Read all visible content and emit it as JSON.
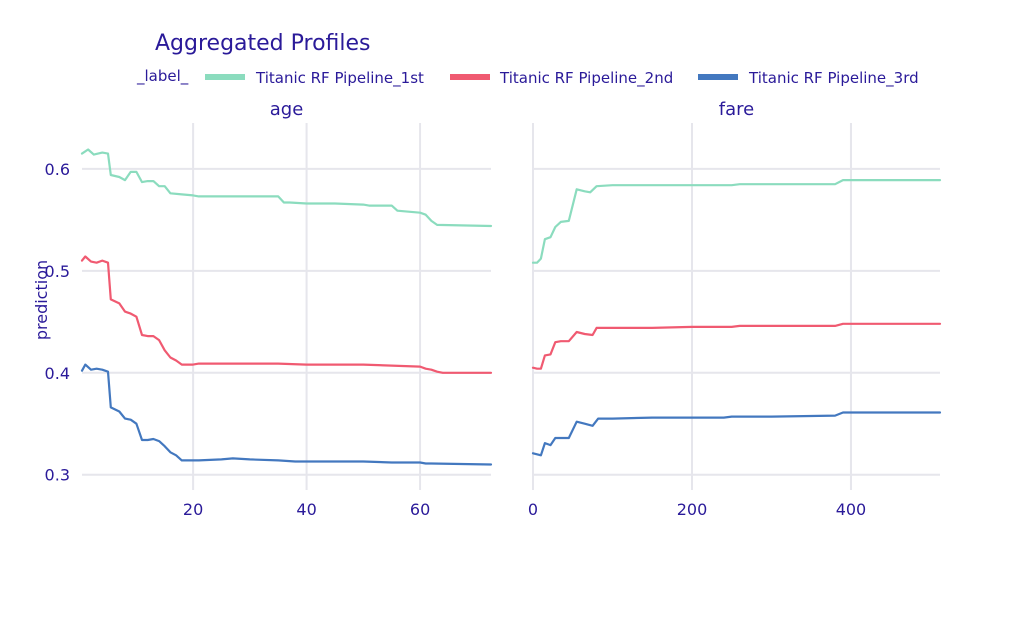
{
  "chart_data": {
    "type": "line",
    "title": "Aggregated Profiles",
    "legend": {
      "title": "_label_",
      "placement": "top",
      "entries": [
        "Titanic RF Pipeline_1st",
        "Titanic RF Pipeline_2nd",
        "Titanic RF Pipeline_3rd"
      ]
    },
    "ylabel": "prediction",
    "ylim": [
      0.285,
      0.645
    ],
    "yticks": [
      0.3,
      0.4,
      0.5,
      0.6
    ],
    "ytick_labels": [
      "0.3",
      "0.4",
      "0.5",
      "0.6"
    ],
    "grid": true,
    "colors": {
      "Titanic RF Pipeline_1st": "#8bdcbe",
      "Titanic RF Pipeline_2nd": "#f05a71",
      "Titanic RF Pipeline_3rd": "#4378bf"
    },
    "panels": [
      {
        "subtitle": "age",
        "xlim": [
          0.42,
          72.5
        ],
        "xticks": [
          20,
          40,
          60
        ],
        "xtick_labels": [
          "20",
          "40",
          "60"
        ],
        "series": [
          {
            "name": "Titanic RF Pipeline_1st",
            "x": [
              0.42,
              1.5,
              2.5,
              4,
              5,
              5.5,
              7,
              8,
              9,
              10,
              11,
              12,
              13,
              14,
              15,
              16,
              18,
              20,
              21,
              25,
              30,
              35,
              36,
              37,
              40,
              45,
              50,
              51,
              55,
              56,
              58,
              60,
              61,
              62,
              63,
              72.5
            ],
            "y": [
              0.615,
              0.619,
              0.614,
              0.616,
              0.615,
              0.594,
              0.592,
              0.589,
              0.597,
              0.597,
              0.587,
              0.588,
              0.588,
              0.583,
              0.583,
              0.576,
              0.575,
              0.574,
              0.573,
              0.573,
              0.573,
              0.573,
              0.567,
              0.567,
              0.566,
              0.566,
              0.565,
              0.564,
              0.564,
              0.559,
              0.558,
              0.557,
              0.555,
              0.549,
              0.545,
              0.544
            ]
          },
          {
            "name": "Titanic RF Pipeline_2nd",
            "x": [
              0.42,
              1,
              2,
              3,
              4,
              5,
              5.5,
              7,
              8,
              9,
              10,
              11,
              12,
              13,
              14,
              15,
              16,
              17,
              18,
              20,
              21,
              25,
              30,
              35,
              40,
              50,
              55,
              60,
              61,
              62,
              63,
              64,
              72.5
            ],
            "y": [
              0.51,
              0.514,
              0.509,
              0.508,
              0.51,
              0.508,
              0.472,
              0.468,
              0.46,
              0.458,
              0.455,
              0.437,
              0.436,
              0.436,
              0.432,
              0.422,
              0.415,
              0.412,
              0.408,
              0.408,
              0.409,
              0.409,
              0.409,
              0.409,
              0.408,
              0.408,
              0.407,
              0.406,
              0.404,
              0.403,
              0.401,
              0.4,
              0.4
            ]
          },
          {
            "name": "Titanic RF Pipeline_3rd",
            "x": [
              0.42,
              1,
              2,
              3,
              4,
              5,
              5.5,
              7,
              8,
              9,
              10,
              11,
              12,
              13,
              14,
              15,
              16,
              17,
              18,
              20,
              21,
              25,
              27,
              30,
              35,
              38,
              40,
              45,
              46,
              50,
              55,
              60,
              61,
              62,
              72.5
            ],
            "y": [
              0.402,
              0.408,
              0.403,
              0.404,
              0.403,
              0.401,
              0.366,
              0.362,
              0.355,
              0.354,
              0.35,
              0.334,
              0.334,
              0.335,
              0.333,
              0.328,
              0.322,
              0.319,
              0.314,
              0.314,
              0.314,
              0.315,
              0.316,
              0.315,
              0.314,
              0.313,
              0.313,
              0.313,
              0.313,
              0.313,
              0.312,
              0.312,
              0.311,
              0.311,
              0.31
            ]
          }
        ]
      },
      {
        "subtitle": "fare",
        "xlim": [
          0,
          512
        ],
        "xticks": [
          0,
          200,
          400
        ],
        "xtick_labels": [
          "0",
          "200",
          "400"
        ],
        "series": [
          {
            "name": "Titanic RF Pipeline_1st",
            "x": [
              0,
              5,
              10,
              15,
              22,
              28,
              35,
              45,
              55,
              65,
              72,
              80,
              100,
              150,
              200,
              250,
              260,
              300,
              380,
              390,
              512
            ],
            "y": [
              0.508,
              0.508,
              0.512,
              0.531,
              0.533,
              0.543,
              0.548,
              0.549,
              0.58,
              0.578,
              0.577,
              0.583,
              0.584,
              0.584,
              0.584,
              0.584,
              0.585,
              0.585,
              0.585,
              0.589,
              0.589
            ]
          },
          {
            "name": "Titanic RF Pipeline_2nd",
            "x": [
              0,
              5,
              10,
              15,
              22,
              28,
              35,
              45,
              55,
              65,
              75,
              80,
              100,
              150,
              200,
              250,
              260,
              300,
              380,
              390,
              512
            ],
            "y": [
              0.405,
              0.404,
              0.404,
              0.417,
              0.418,
              0.43,
              0.431,
              0.431,
              0.44,
              0.438,
              0.437,
              0.444,
              0.444,
              0.444,
              0.445,
              0.445,
              0.446,
              0.446,
              0.446,
              0.448,
              0.448
            ]
          },
          {
            "name": "Titanic RF Pipeline_3rd",
            "x": [
              0,
              5,
              10,
              15,
              22,
              28,
              35,
              45,
              55,
              65,
              75,
              82,
              100,
              150,
              200,
              240,
              250,
              300,
              380,
              390,
              512
            ],
            "y": [
              0.321,
              0.32,
              0.319,
              0.331,
              0.329,
              0.336,
              0.336,
              0.336,
              0.352,
              0.35,
              0.348,
              0.355,
              0.355,
              0.356,
              0.356,
              0.356,
              0.357,
              0.357,
              0.358,
              0.361,
              0.361
            ]
          }
        ]
      }
    ]
  }
}
